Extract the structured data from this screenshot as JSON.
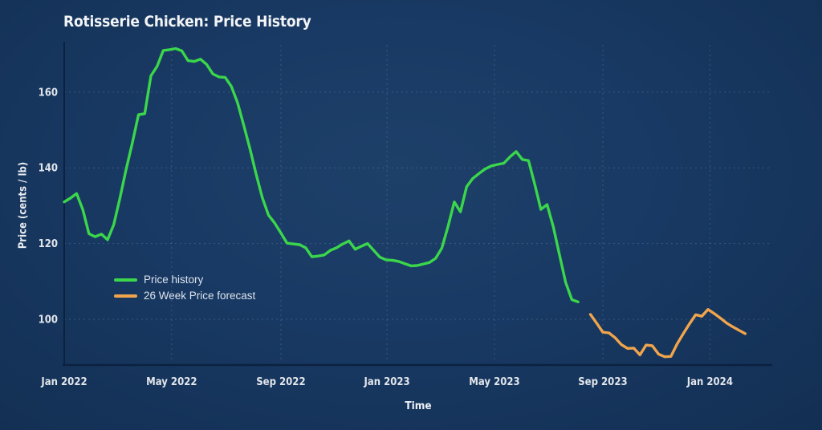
{
  "chart_data": {
    "type": "line",
    "title": "Rotisserie Chicken: Price History",
    "xlabel": "Time",
    "ylabel": "Price (cents / lb)",
    "x_axis": {
      "unit": "weeks since Jan 2022",
      "tick_labels": [
        "Jan 2022",
        "May 2022",
        "Sep 2022",
        "Jan 2023",
        "May 2023",
        "Sep 2023",
        "Jan 2024"
      ],
      "tick_weeks": [
        0,
        17.35,
        35.0,
        52.14,
        69.5,
        87.0,
        104.3
      ]
    },
    "y_axis": {
      "ticks": [
        100,
        120,
        140,
        160
      ],
      "range": [
        88,
        173
      ],
      "unit": "cents / lb"
    },
    "grid": true,
    "legend": {
      "position": "inside-left"
    },
    "series": [
      {
        "name": "Price history",
        "color": "#3bd64b",
        "start_week": 0,
        "cadence_weeks": 1,
        "values": [
          131.0,
          132.0,
          133.2,
          129.0,
          122.6,
          121.8,
          122.5,
          121.0,
          125.0,
          132.0,
          139.6,
          146.5,
          154.0,
          154.3,
          164.3,
          166.8,
          171.0,
          171.2,
          171.5,
          170.9,
          168.3,
          168.1,
          168.7,
          167.3,
          164.8,
          164.0,
          163.9,
          161.5,
          157.2,
          151.3,
          145.0,
          138.3,
          132.1,
          127.5,
          125.4,
          122.8,
          120.1,
          119.9,
          119.7,
          118.9,
          116.5,
          116.7,
          117.0,
          118.2,
          118.9,
          119.9,
          120.7,
          118.5,
          119.3,
          120.0,
          118.2,
          116.4,
          115.7,
          115.6,
          115.3,
          114.7,
          114.1,
          114.2,
          114.6,
          115.0,
          116.1,
          118.8,
          124.5,
          131.0,
          128.4,
          135.0,
          137.2,
          138.5,
          139.7,
          140.5,
          140.9,
          141.2,
          142.9,
          144.3,
          142.2,
          141.9,
          135.7,
          129.0,
          130.3,
          124.5,
          117.0,
          109.7,
          105.2,
          104.6
        ]
      },
      {
        "name": "26 Week Price forecast",
        "color": "#f0a54c",
        "start_week": 85,
        "cadence_weeks": 1,
        "values": [
          101.3,
          99.0,
          96.6,
          96.4,
          95.1,
          93.3,
          92.3,
          92.4,
          90.6,
          93.2,
          93.0,
          90.8,
          90.1,
          90.2,
          93.5,
          96.2,
          98.8,
          101.2,
          100.8,
          102.6,
          101.5,
          100.3,
          99.0,
          98.0,
          97.1,
          96.2
        ]
      }
    ]
  }
}
